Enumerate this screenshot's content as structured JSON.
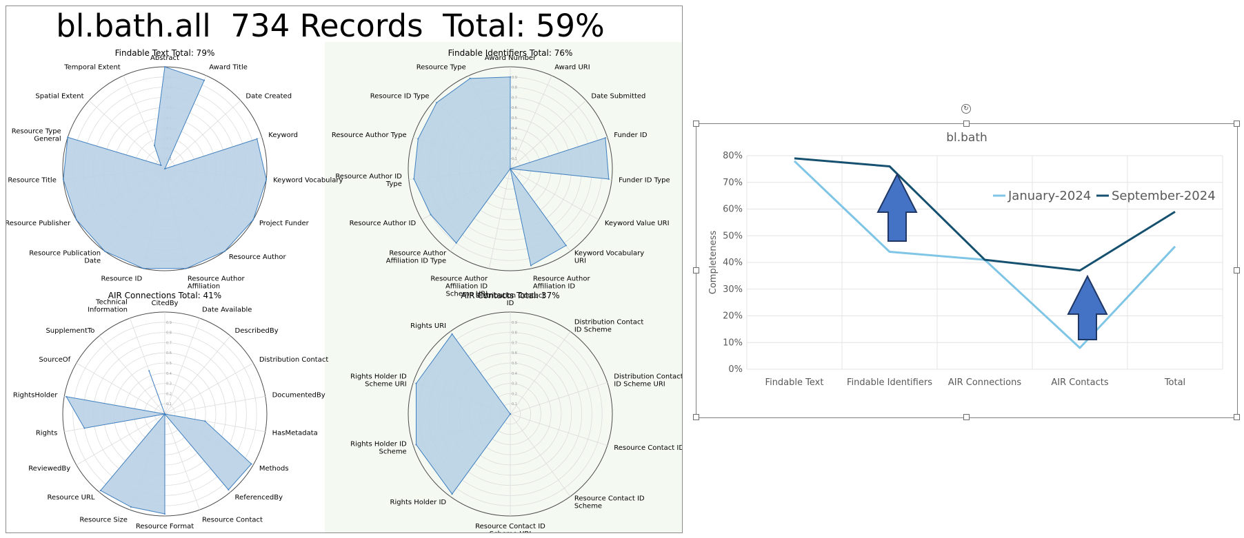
{
  "dashboard_title": "bl.bath.all  734 Records  Total: 59%",
  "radar_tick_labels": [
    "0.1",
    "0.2",
    "0.3",
    "0.4",
    "0.5",
    "0.6",
    "0.7",
    "0.8",
    "0.9"
  ],
  "colors": {
    "radar_fill": "#b9d1e6",
    "radar_line": "#3f7fbf",
    "right_panel_bg": "#f4f9f2",
    "series_jan": "#7ec5e6",
    "series_sep": "#16506f",
    "arrow": "#4472c4"
  },
  "chart_data": [
    {
      "type": "radar",
      "title": "Findable Text  Total: 79%",
      "categories": [
        "Abstract",
        "Award Title",
        "Date Created",
        "Keyword",
        "Keyword Vocabulary",
        "Project Funder",
        "Resource Author",
        "Resource Author Affiliation",
        "Resource ID",
        "Resource Publication Date",
        "Resource Publisher",
        "Resource Title",
        "Resource Type General",
        "Spatial Extent",
        "Temporal Extent"
      ],
      "values": [
        1.0,
        0.95,
        0.0,
        0.95,
        1.0,
        1.0,
        1.0,
        1.0,
        1.0,
        1.0,
        1.0,
        1.0,
        1.0,
        0.05,
        0.25
      ],
      "rlim": [
        0,
        1
      ]
    },
    {
      "type": "radar",
      "title": "Findable Identifiers  Total: 76%",
      "categories": [
        "Award Number",
        "Award URI",
        "Date Submitted",
        "Funder ID",
        "Funder ID Type",
        "Keyword Value URI",
        "Keyword Vocabulary URI",
        "Resource Author Affiliation ID",
        "Resource Author Affiliation ID Scheme URI",
        "Resource Author Affiliation ID Type",
        "Resource Author ID",
        "Resource Author ID Type",
        "Resource Author Type",
        "Resource ID Type",
        "Resource Type"
      ],
      "values": [
        0.9,
        0.0,
        0.0,
        0.98,
        0.97,
        0.0,
        0.93,
        0.97,
        0.0,
        0.9,
        0.9,
        0.95,
        0.95,
        0.97,
        0.97
      ],
      "rlim": [
        0,
        1
      ]
    },
    {
      "type": "radar",
      "title": "AIR Connections  Total: 41%",
      "categories": [
        "CitedBy",
        "Date Available",
        "DescribedBy",
        "Distribution Contact",
        "DocumentedBy",
        "HasMetadata",
        "Methods",
        "ReferencedBy",
        "Resource Contact",
        "Resource Format",
        "Resource Size",
        "Resource URL",
        "ReviewedBy",
        "Rights",
        "RightsHolder",
        "SourceOf",
        "SupplementTo",
        "Technical Information"
      ],
      "values": [
        0.0,
        0.0,
        0.0,
        0.0,
        0.0,
        0.4,
        0.98,
        0.97,
        0.0,
        0.98,
        0.97,
        0.98,
        0.0,
        0.8,
        0.98,
        0.0,
        0.0,
        0.45
      ],
      "rlim": [
        0,
        1
      ]
    },
    {
      "type": "radar",
      "title": "AIR Contacts  Total: 37%",
      "categories": [
        "Distribution Contact ID",
        "Distribution Contact ID Scheme",
        "Distribution Contact ID Scheme URI",
        "Resource Contact ID",
        "Resource Contact ID Scheme",
        "Resource Contact ID Scheme URI",
        "Rights Holder ID",
        "Rights Holder ID Scheme",
        "Rights Holder ID Scheme URI",
        "Rights URI"
      ],
      "values": [
        0.0,
        0.0,
        0.0,
        0.0,
        0.0,
        0.0,
        0.97,
        0.97,
        0.97,
        0.97
      ],
      "rlim": [
        0,
        1
      ]
    },
    {
      "type": "line",
      "title": "bl.bath",
      "categories": [
        "Findable Text",
        "Findable Identifiers",
        "AIR Connections",
        "AIR Contacts",
        "Total"
      ],
      "series": [
        {
          "name": "January-2024",
          "values": [
            78,
            44,
            41,
            8,
            46
          ]
        },
        {
          "name": "September-2024",
          "values": [
            79,
            76,
            41,
            37,
            59
          ]
        }
      ],
      "ylabel": "Completeness",
      "ylim": [
        0,
        80
      ],
      "yticks": [
        "0%",
        "10%",
        "20%",
        "30%",
        "40%",
        "50%",
        "60%",
        "70%",
        "80%"
      ],
      "grid": true,
      "legend_position": "top-right"
    }
  ]
}
